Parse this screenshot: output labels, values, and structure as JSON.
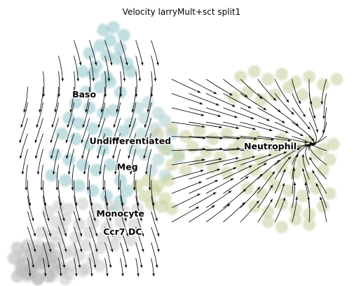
{
  "chart_data": {
    "type": "scatter",
    "title": "Velocity larryMult+sct split1",
    "xlabel": "",
    "ylabel": "",
    "axes_visible": false,
    "grid": false,
    "legend": "none",
    "overlay": "velocity streamlines with arrowheads",
    "xlim": [
      0,
      100
    ],
    "ylim": [
      0,
      100
    ],
    "series": [
      {
        "name": "Baso",
        "color": "#8ec3c9",
        "x": [
          28,
          31,
          34,
          30,
          27,
          33,
          24,
          29,
          32,
          35,
          26,
          22,
          25,
          29,
          36,
          30,
          27,
          23,
          33,
          20,
          24,
          28,
          31,
          18,
          21,
          25,
          29,
          34,
          16,
          20,
          24,
          28,
          14,
          18,
          22,
          26,
          30,
          13,
          17,
          21,
          25,
          29,
          33,
          35,
          33,
          31
        ],
        "y": [
          96,
          97,
          94,
          92,
          90,
          89,
          87,
          86,
          85,
          83,
          82,
          80,
          79,
          78,
          80,
          76,
          74,
          72,
          72,
          68,
          66,
          64,
          65,
          62,
          60,
          58,
          56,
          57,
          56,
          54,
          52,
          50,
          48,
          46,
          44,
          42,
          44,
          40,
          38,
          36,
          34,
          32,
          30,
          34,
          38,
          26
        ]
      },
      {
        "name": "Undifferentiated",
        "color": "#aacdd2",
        "x": [
          38,
          41,
          44,
          40,
          36,
          43,
          46,
          39,
          42,
          45,
          48,
          37,
          40,
          44,
          47,
          50,
          42,
          46
        ],
        "y": [
          66,
          68,
          64,
          62,
          60,
          58,
          61,
          56,
          54,
          52,
          56,
          50,
          48,
          46,
          50,
          47,
          42,
          40
        ]
      },
      {
        "name": "Meg",
        "color": "#c5ce95",
        "x": [
          40,
          43,
          46,
          42,
          45,
          48,
          44,
          41,
          38,
          47
        ],
        "y": [
          32,
          34,
          31,
          29,
          28,
          27,
          36,
          38,
          36,
          38
        ]
      },
      {
        "name": "Monocyte",
        "color": "#c9c9c9",
        "x": [
          12,
          15,
          18,
          22,
          26,
          30,
          34,
          38,
          14,
          17,
          21,
          25,
          29,
          33,
          37,
          10,
          13,
          16,
          20,
          24,
          28,
          32,
          36,
          9,
          12,
          15,
          19,
          23,
          27,
          31,
          7,
          10,
          13,
          17,
          21,
          25,
          5,
          8,
          11,
          15,
          19,
          23,
          27,
          4,
          7,
          10,
          14,
          18,
          22,
          6,
          9,
          13,
          17
        ],
        "y": [
          26,
          28,
          27,
          29,
          27,
          28,
          26,
          27,
          22,
          23,
          21,
          22,
          20,
          22,
          21,
          18,
          17,
          19,
          16,
          18,
          16,
          17,
          15,
          13,
          12,
          14,
          11,
          13,
          12,
          13,
          10,
          9,
          8,
          10,
          9,
          8,
          6,
          5,
          7,
          6,
          5,
          4,
          5,
          3,
          2,
          4,
          3,
          2,
          3,
          1,
          0,
          1,
          0
        ]
      },
      {
        "name": "Ccr7 DC",
        "color": "#b0b0b0",
        "x": [
          3,
          6,
          9,
          12,
          2,
          5,
          8,
          11,
          14,
          4,
          7,
          10,
          13,
          16,
          3,
          6,
          9,
          12
        ],
        "y": [
          12,
          13,
          11,
          12,
          8,
          9,
          7,
          8,
          9,
          5,
          4,
          6,
          5,
          4,
          1,
          2,
          0,
          1
        ]
      },
      {
        "name": "Neutrophil",
        "color": "#c7cc9a",
        "x": [
          44,
          48,
          52,
          56,
          60,
          64,
          68,
          72,
          76,
          80,
          84,
          88,
          92,
          95,
          46,
          50,
          54,
          58,
          62,
          66,
          70,
          74,
          78,
          82,
          86,
          90,
          94,
          48,
          52,
          56,
          60,
          64,
          68,
          72,
          76,
          80,
          84,
          88,
          92,
          66,
          70,
          74,
          78,
          82,
          86,
          90,
          68,
          72,
          76,
          80,
          84,
          88,
          92,
          96,
          70,
          74,
          78,
          82,
          86,
          90,
          94,
          72,
          76,
          80,
          84,
          88,
          92,
          76,
          80,
          84,
          88
        ],
        "y": [
          56,
          58,
          55,
          57,
          54,
          56,
          53,
          55,
          52,
          54,
          51,
          53,
          50,
          52,
          50,
          48,
          51,
          49,
          47,
          50,
          48,
          46,
          49,
          47,
          45,
          48,
          46,
          44,
          42,
          45,
          43,
          41,
          44,
          42,
          40,
          43,
          41,
          39,
          42,
          70,
          72,
          69,
          71,
          74,
          71,
          68,
          78,
          80,
          77,
          79,
          76,
          78,
          75,
          77,
          35,
          33,
          36,
          34,
          32,
          35,
          33,
          28,
          26,
          29,
          27,
          25,
          28,
          22,
          20,
          23,
          21
        ]
      }
    ],
    "labels": [
      {
        "text": "Baso",
        "x": 19,
        "y": 70
      },
      {
        "text": "Undifferentiated",
        "x": 24,
        "y": 52
      },
      {
        "text": "Meg",
        "x": 32,
        "y": 42
      },
      {
        "text": "Neutrophil",
        "x": 69,
        "y": 50
      },
      {
        "text": "Monocyte",
        "x": 26,
        "y": 24
      },
      {
        "text": "Ccr7 DC",
        "x": 28,
        "y": 17
      }
    ]
  }
}
